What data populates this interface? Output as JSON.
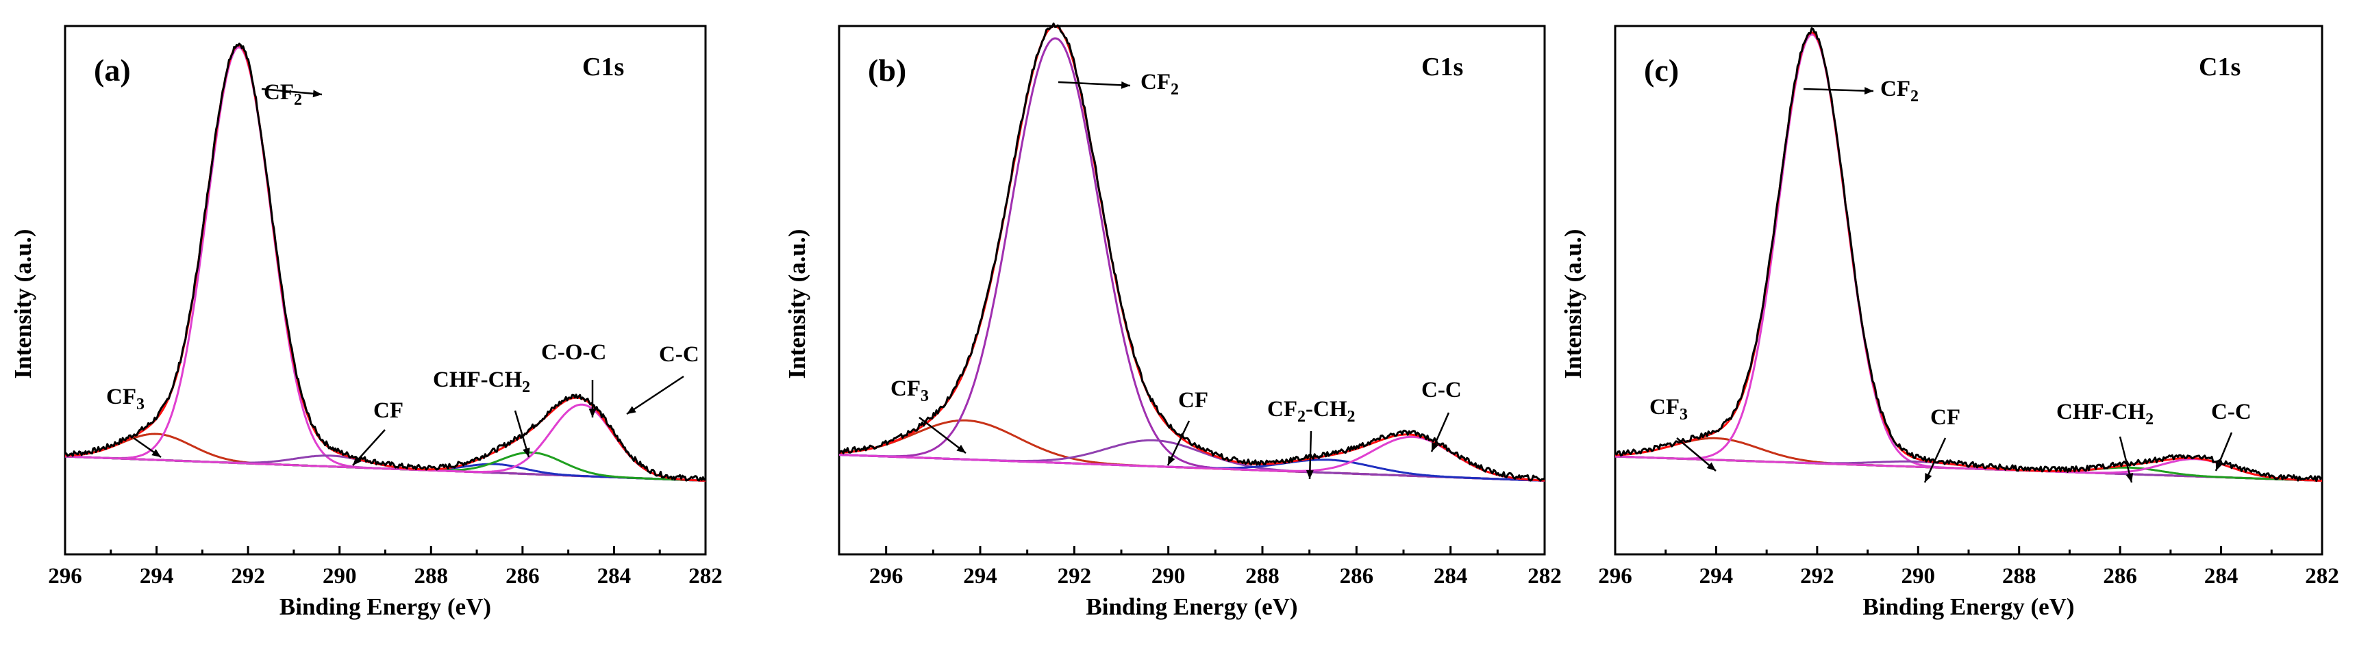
{
  "chart_data": [
    {
      "type": "line",
      "panel_letter": "(a)",
      "region": "C1s",
      "xlabel": "Binding Energy (eV)",
      "ylabel": "Intensity (a.u.)",
      "xlim": [
        296,
        282
      ],
      "x_ticks": [
        "296",
        "294",
        "292",
        "290",
        "288",
        "286",
        "284",
        "282"
      ],
      "ylim": [
        -0.17,
        1.05
      ],
      "baseline": 0.0,
      "peaks": [
        {
          "name": "CF3",
          "label": "CF",
          "sub": "3",
          "center": 294.0,
          "height": 0.06,
          "fwhm": 1.8,
          "color": "#c83218"
        },
        {
          "name": "CF2",
          "label": "CF",
          "sub": "2",
          "center": 292.2,
          "height": 0.96,
          "fwhm": 1.65,
          "color": "#e040d0"
        },
        {
          "name": "CF",
          "label": "CF",
          "sub": "",
          "center": 290.2,
          "height": 0.025,
          "fwhm": 1.8,
          "color": "#9040b0"
        },
        {
          "name": "CHF-CH2",
          "label": "CHF-CH",
          "sub": "2",
          "center": 286.6,
          "height": 0.02,
          "fwhm": 1.5,
          "color": "#2030c0"
        },
        {
          "name": "C-O-C",
          "label": "C-O-C",
          "sub": "",
          "center": 285.8,
          "height": 0.05,
          "fwhm": 1.6,
          "color": "#20a020"
        },
        {
          "name": "C-C",
          "label": "C-C",
          "sub": "",
          "center": 284.7,
          "height": 0.165,
          "fwhm": 1.6,
          "color": "#e040d0"
        }
      ]
    },
    {
      "type": "line",
      "panel_letter": "(b)",
      "region": "C1s",
      "xlabel": "Binding Energy (eV)",
      "ylabel": "Intensity (a.u.)",
      "xlim": [
        297,
        282
      ],
      "x_ticks": [
        "296",
        "294",
        "292",
        "290",
        "288",
        "286",
        "284",
        "282"
      ],
      "ylim": [
        -0.17,
        1.05
      ],
      "baseline": 0.0,
      "peaks": [
        {
          "name": "CF3",
          "label": "CF",
          "sub": "3",
          "center": 294.3,
          "height": 0.09,
          "fwhm": 2.6,
          "color": "#c83218"
        },
        {
          "name": "CF2",
          "label": "CF",
          "sub": "2",
          "center": 292.4,
          "height": 0.98,
          "fwhm": 2.2,
          "color": "#a030b0"
        },
        {
          "name": "CF",
          "label": "CF",
          "sub": "",
          "center": 290.3,
          "height": 0.06,
          "fwhm": 2.4,
          "color": "#9040b0"
        },
        {
          "name": "CF2-CH2",
          "label": "CF",
          "sub": "2",
          "label2": "-CH",
          "sub2": "2",
          "center": 286.6,
          "height": 0.03,
          "fwhm": 2.2,
          "color": "#2030c0"
        },
        {
          "name": "C-C",
          "label": "C-C",
          "sub": "",
          "center": 284.8,
          "height": 0.09,
          "fwhm": 2.0,
          "color": "#e040d0"
        }
      ]
    },
    {
      "type": "line",
      "panel_letter": "(c)",
      "region": "C1s",
      "xlabel": "Binding Energy (eV)",
      "ylabel": "Intensity (a.u.)",
      "xlim": [
        296,
        282
      ],
      "x_ticks": [
        "296",
        "294",
        "292",
        "290",
        "288",
        "286",
        "284",
        "282"
      ],
      "ylim": [
        -0.17,
        1.05
      ],
      "baseline": 0.0,
      "peaks": [
        {
          "name": "CF3",
          "label": "CF",
          "sub": "3",
          "center": 294.0,
          "height": 0.05,
          "fwhm": 2.0,
          "color": "#c83218"
        },
        {
          "name": "CF2",
          "label": "CF",
          "sub": "2",
          "center": 292.1,
          "height": 0.99,
          "fwhm": 1.55,
          "color": "#e040d0"
        },
        {
          "name": "CF",
          "label": "CF",
          "sub": "",
          "center": 290.0,
          "height": 0.012,
          "fwhm": 2.0,
          "color": "#9040b0"
        },
        {
          "name": "CHF-CH2",
          "label": "CHF-CH",
          "sub": "2",
          "center": 285.8,
          "height": 0.015,
          "fwhm": 1.5,
          "color": "#20a020"
        },
        {
          "name": "C-C",
          "label": "C-C",
          "sub": "",
          "center": 284.5,
          "height": 0.04,
          "fwhm": 1.6,
          "color": "#e040d0"
        }
      ]
    }
  ]
}
